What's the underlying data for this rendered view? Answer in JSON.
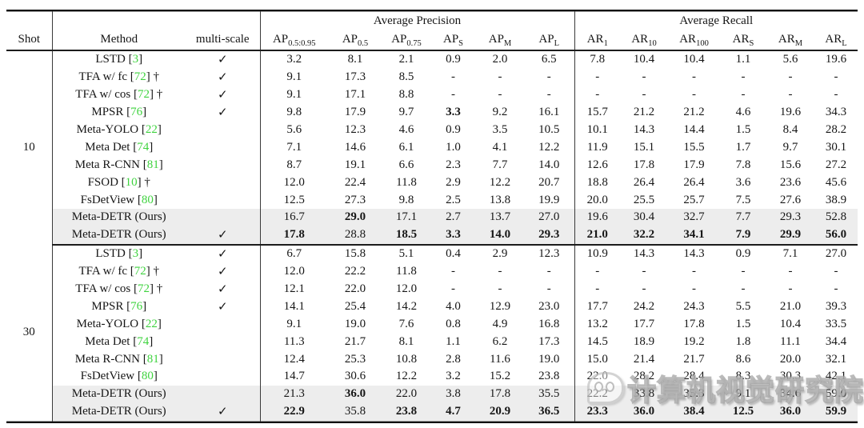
{
  "table": {
    "group_headers": {
      "precision": "Average Precision",
      "recall": "Average Recall"
    },
    "columns": {
      "shot": "Shot",
      "method": "Method",
      "multiscale": "multi-scale",
      "ap": [
        {
          "label": "AP",
          "sub": "0.5:0.95"
        },
        {
          "label": "AP",
          "sub": "0.5"
        },
        {
          "label": "AP",
          "sub": "0.75"
        },
        {
          "label": "AP",
          "sub": "S"
        },
        {
          "label": "AP",
          "sub": "M"
        },
        {
          "label": "AP",
          "sub": "L"
        }
      ],
      "ar": [
        {
          "label": "AR",
          "sub": "1"
        },
        {
          "label": "AR",
          "sub": "10"
        },
        {
          "label": "AR",
          "sub": "100"
        },
        {
          "label": "AR",
          "sub": "S"
        },
        {
          "label": "AR",
          "sub": "M"
        },
        {
          "label": "AR",
          "sub": "L"
        }
      ]
    },
    "symbols": {
      "checkmark": "✓",
      "dagger": "†",
      "bracket_open": "[",
      "bracket_close": "]",
      "dash": "-"
    },
    "colors": {
      "citation_green": "#3fd33f",
      "row_shade": "#ededed"
    },
    "sections": [
      {
        "shot": "10",
        "rows": [
          {
            "method": "LSTD",
            "cite": "3",
            "dagger": false,
            "multiscale": true,
            "shaded": false,
            "bold": [],
            "values": [
              "3.2",
              "8.1",
              "2.1",
              "0.9",
              "2.0",
              "6.5",
              "7.8",
              "10.4",
              "10.4",
              "1.1",
              "5.6",
              "19.6"
            ]
          },
          {
            "method": "TFA w/ fc",
            "cite": "72",
            "dagger": true,
            "multiscale": true,
            "shaded": false,
            "bold": [],
            "values": [
              "9.1",
              "17.3",
              "8.5",
              "-",
              "-",
              "-",
              "-",
              "-",
              "-",
              "-",
              "-",
              "-"
            ]
          },
          {
            "method": "TFA w/ cos",
            "cite": "72",
            "dagger": true,
            "multiscale": true,
            "shaded": false,
            "bold": [],
            "values": [
              "9.1",
              "17.1",
              "8.8",
              "-",
              "-",
              "-",
              "-",
              "-",
              "-",
              "-",
              "-",
              "-"
            ]
          },
          {
            "method": "MPSR",
            "cite": "76",
            "dagger": false,
            "multiscale": true,
            "shaded": false,
            "bold": [
              3
            ],
            "values": [
              "9.8",
              "17.9",
              "9.7",
              "3.3",
              "9.2",
              "16.1",
              "15.7",
              "21.2",
              "21.2",
              "4.6",
              "19.6",
              "34.3"
            ]
          },
          {
            "method": "Meta-YOLO",
            "cite": "22",
            "dagger": false,
            "multiscale": false,
            "shaded": false,
            "bold": [],
            "values": [
              "5.6",
              "12.3",
              "4.6",
              "0.9",
              "3.5",
              "10.5",
              "10.1",
              "14.3",
              "14.4",
              "1.5",
              "8.4",
              "28.2"
            ]
          },
          {
            "method": "Meta Det",
            "cite": "74",
            "dagger": false,
            "multiscale": false,
            "shaded": false,
            "bold": [],
            "values": [
              "7.1",
              "14.6",
              "6.1",
              "1.0",
              "4.1",
              "12.2",
              "11.9",
              "15.1",
              "15.5",
              "1.7",
              "9.7",
              "30.1"
            ]
          },
          {
            "method": "Meta R-CNN",
            "cite": "81",
            "dagger": false,
            "multiscale": false,
            "shaded": false,
            "bold": [],
            "values": [
              "8.7",
              "19.1",
              "6.6",
              "2.3",
              "7.7",
              "14.0",
              "12.6",
              "17.8",
              "17.9",
              "7.8",
              "15.6",
              "27.2"
            ]
          },
          {
            "method": "FSOD",
            "cite": "10",
            "dagger": true,
            "multiscale": false,
            "shaded": false,
            "bold": [],
            "values": [
              "12.0",
              "22.4",
              "11.8",
              "2.9",
              "12.2",
              "20.7",
              "18.8",
              "26.4",
              "26.4",
              "3.6",
              "23.6",
              "45.6"
            ]
          },
          {
            "method": "FsDetView",
            "cite": "80",
            "dagger": false,
            "multiscale": false,
            "shaded": false,
            "bold": [],
            "values": [
              "12.5",
              "27.3",
              "9.8",
              "2.5",
              "13.8",
              "19.9",
              "20.0",
              "25.5",
              "25.7",
              "7.5",
              "27.6",
              "38.9"
            ]
          },
          {
            "method": "Meta-DETR (Ours)",
            "cite": null,
            "dagger": false,
            "multiscale": false,
            "shaded": true,
            "bold": [
              1
            ],
            "values": [
              "16.7",
              "29.0",
              "17.1",
              "2.7",
              "13.7",
              "27.0",
              "19.6",
              "30.4",
              "32.7",
              "7.7",
              "29.3",
              "52.8"
            ]
          },
          {
            "method": "Meta-DETR (Ours)",
            "cite": null,
            "dagger": false,
            "multiscale": true,
            "shaded": true,
            "bold": [
              0,
              2,
              3,
              4,
              5,
              6,
              7,
              8,
              9,
              10,
              11
            ],
            "values": [
              "17.8",
              "28.8",
              "18.5",
              "3.3",
              "14.0",
              "29.3",
              "21.0",
              "32.2",
              "34.1",
              "7.9",
              "29.9",
              "56.0"
            ]
          }
        ]
      },
      {
        "shot": "30",
        "rows": [
          {
            "method": "LSTD",
            "cite": "3",
            "dagger": false,
            "multiscale": true,
            "shaded": false,
            "bold": [],
            "values": [
              "6.7",
              "15.8",
              "5.1",
              "0.4",
              "2.9",
              "12.3",
              "10.9",
              "14.3",
              "14.3",
              "0.9",
              "7.1",
              "27.0"
            ]
          },
          {
            "method": "TFA w/ fc",
            "cite": "72",
            "dagger": true,
            "multiscale": true,
            "shaded": false,
            "bold": [],
            "values": [
              "12.0",
              "22.2",
              "11.8",
              "-",
              "-",
              "-",
              "-",
              "-",
              "-",
              "-",
              "-",
              "-"
            ]
          },
          {
            "method": "TFA w/ cos",
            "cite": "72",
            "dagger": true,
            "multiscale": true,
            "shaded": false,
            "bold": [],
            "values": [
              "12.1",
              "22.0",
              "12.0",
              "-",
              "-",
              "-",
              "-",
              "-",
              "-",
              "-",
              "-",
              "-"
            ]
          },
          {
            "method": "MPSR",
            "cite": "76",
            "dagger": false,
            "multiscale": true,
            "shaded": false,
            "bold": [],
            "values": [
              "14.1",
              "25.4",
              "14.2",
              "4.0",
              "12.9",
              "23.0",
              "17.7",
              "24.2",
              "24.3",
              "5.5",
              "21.0",
              "39.3"
            ]
          },
          {
            "method": "Meta-YOLO",
            "cite": "22",
            "dagger": false,
            "multiscale": false,
            "shaded": false,
            "bold": [],
            "values": [
              "9.1",
              "19.0",
              "7.6",
              "0.8",
              "4.9",
              "16.8",
              "13.2",
              "17.7",
              "17.8",
              "1.5",
              "10.4",
              "33.5"
            ]
          },
          {
            "method": "Meta Det",
            "cite": "74",
            "dagger": false,
            "multiscale": false,
            "shaded": false,
            "bold": [],
            "values": [
              "11.3",
              "21.7",
              "8.1",
              "1.1",
              "6.2",
              "17.3",
              "14.5",
              "18.9",
              "19.2",
              "1.8",
              "11.1",
              "34.4"
            ]
          },
          {
            "method": "Meta R-CNN",
            "cite": "81",
            "dagger": false,
            "multiscale": false,
            "shaded": false,
            "bold": [],
            "values": [
              "12.4",
              "25.3",
              "10.8",
              "2.8",
              "11.6",
              "19.0",
              "15.0",
              "21.4",
              "21.7",
              "8.6",
              "20.0",
              "32.1"
            ]
          },
          {
            "method": "FsDetView",
            "cite": "80",
            "dagger": false,
            "multiscale": false,
            "shaded": false,
            "bold": [],
            "values": [
              "14.7",
              "30.6",
              "12.2",
              "3.2",
              "15.2",
              "23.8",
              "22.0",
              "28.2",
              "28.4",
              "8.3",
              "30.3",
              "42.1"
            ]
          },
          {
            "method": "Meta-DETR (Ours)",
            "cite": null,
            "dagger": false,
            "multiscale": false,
            "shaded": true,
            "bold": [
              1
            ],
            "values": [
              "21.3",
              "36.0",
              "22.0",
              "3.8",
              "17.8",
              "35.5",
              "22.2",
              "33.8",
              "35.3",
              "9.1",
              "34.6",
              "59.0"
            ]
          },
          {
            "method": "Meta-DETR (Ours)",
            "cite": null,
            "dagger": false,
            "multiscale": true,
            "shaded": true,
            "bold": [
              0,
              2,
              3,
              4,
              5,
              6,
              7,
              8,
              9,
              10,
              11
            ],
            "values": [
              "22.9",
              "35.8",
              "23.8",
              "4.7",
              "20.9",
              "36.5",
              "23.3",
              "36.0",
              "38.4",
              "12.5",
              "36.0",
              "59.9"
            ]
          }
        ]
      }
    ]
  },
  "watermark": {
    "text": "计算机视觉研究院",
    "logo": "chat-bubble-smiley-logo"
  }
}
